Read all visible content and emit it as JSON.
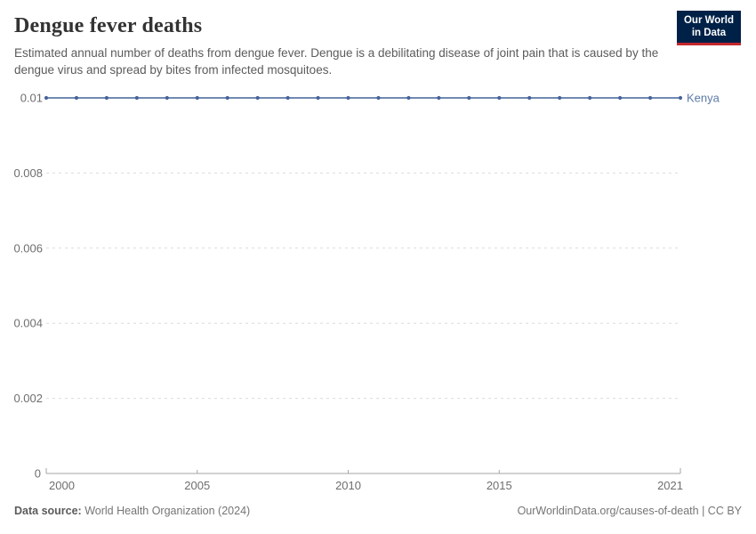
{
  "header": {
    "title": "Dengue fever deaths",
    "subtitle": "Estimated annual number of deaths from dengue fever. Dengue is a debilitating disease of joint pain that is caused by the dengue virus and spread by bites from infected mosquitoes.",
    "logo": {
      "line1": "Our World",
      "line2": "in Data",
      "bg_color": "#002147",
      "accent_color": "#c4282e"
    }
  },
  "chart_data": {
    "type": "line",
    "title": "Dengue fever deaths",
    "xlabel": "",
    "ylabel": "",
    "x": [
      2000,
      2001,
      2002,
      2003,
      2004,
      2005,
      2006,
      2007,
      2008,
      2009,
      2010,
      2011,
      2012,
      2013,
      2014,
      2015,
      2016,
      2017,
      2018,
      2019,
      2020,
      2021
    ],
    "series": [
      {
        "name": "Kenya",
        "color": "#5b7aa8",
        "point_color": "#48639b",
        "values": [
          0.01,
          0.01,
          0.01,
          0.01,
          0.01,
          0.01,
          0.01,
          0.01,
          0.01,
          0.01,
          0.01,
          0.01,
          0.01,
          0.01,
          0.01,
          0.01,
          0.01,
          0.01,
          0.01,
          0.01,
          0.01,
          0.01
        ]
      }
    ],
    "ylim": [
      0,
      0.01
    ],
    "yticks": [
      0,
      0.002,
      0.004,
      0.006,
      0.008,
      0.01
    ],
    "ytick_labels": [
      "0",
      "0.002",
      "0.004",
      "0.006",
      "0.008",
      "0.01"
    ],
    "xticks": [
      2000,
      2005,
      2010,
      2015,
      2021
    ],
    "xtick_labels": [
      "2000",
      "2005",
      "2010",
      "2015",
      "2021"
    ],
    "grid": "horizontal-dashed",
    "grid_color": "#dcdcdc",
    "axis_color": "#a5a5a5",
    "legend_position": "end-of-line-label"
  },
  "footer": {
    "source_label": "Data source:",
    "source_value": "World Health Organization (2024)",
    "credit": "OurWorldinData.org/causes-of-death | CC BY"
  }
}
